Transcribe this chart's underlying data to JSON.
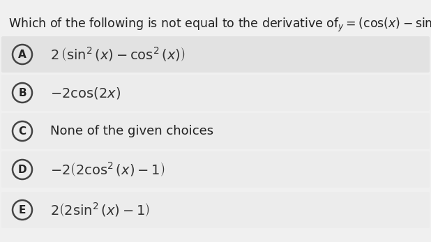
{
  "background_color": "#f0f0f0",
  "options": [
    {
      "label": "A",
      "math": "2\\,\\left(\\sin^2(x) - \\cos^2(x)\\right)",
      "bg": "#e2e2e2"
    },
    {
      "label": "B",
      "math": "-2\\cos(2x)",
      "bg": "#ececec"
    },
    {
      "label": "C",
      "text": "None of the given choices",
      "bg": "#ececec"
    },
    {
      "label": "D",
      "math": "-2\\left(2\\cos^2(x) - 1\\right)",
      "bg": "#ececec"
    },
    {
      "label": "E",
      "math": "2\\left(2\\sin^2(x) - 1\\right)",
      "bg": "#ececec"
    }
  ],
  "circle_color": "#444444",
  "text_color": "#222222",
  "math_color": "#333333",
  "fig_width": 6.18,
  "fig_height": 3.47,
  "dpi": 100
}
